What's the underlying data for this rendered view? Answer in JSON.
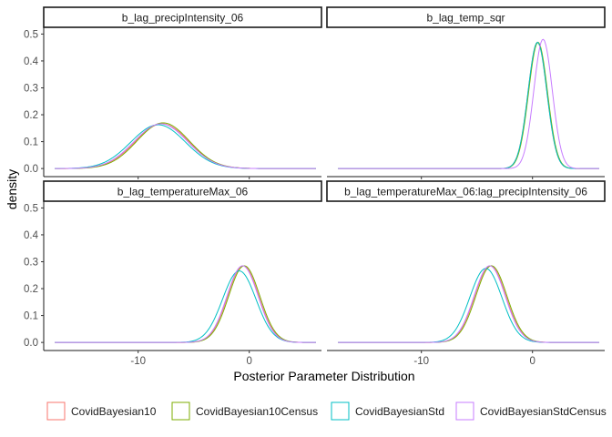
{
  "chart_data": {
    "type": "line",
    "subtype": "density",
    "xlabel": "Posterior Parameter Distribution",
    "ylabel": "density",
    "xlim": [
      -18.5,
      6.5
    ],
    "ylim": [
      -0.03,
      0.525
    ],
    "x_ticks": [
      -10,
      0
    ],
    "x_tick_labels": [
      "-10",
      "0"
    ],
    "y_ticks": [
      0.0,
      0.1,
      0.2,
      0.3,
      0.4,
      0.5
    ],
    "y_tick_labels": [
      "0.0",
      "0.1",
      "0.2",
      "0.3",
      "0.4",
      "0.5"
    ],
    "legend_position": "bottom",
    "series": [
      {
        "name": "CovidBayesian10",
        "color": "#F8766D"
      },
      {
        "name": "CovidBayesian10Census",
        "color": "#7CAE00"
      },
      {
        "name": "CovidBayesianStd",
        "color": "#00BFC4"
      },
      {
        "name": "CovidBayesianStdCensus",
        "color": "#C77CFF"
      }
    ],
    "panels": [
      {
        "title": "b_lag_precipIntensity_06",
        "x_range": [
          -17.5,
          6
        ],
        "curves": [
          {
            "series": "CovidBayesian10",
            "mean": -7.85,
            "sd": 2.4
          },
          {
            "series": "CovidBayesian10Census",
            "mean": -7.75,
            "sd": 2.35
          },
          {
            "series": "CovidBayesianStd",
            "mean": -8.2,
            "sd": 2.45
          },
          {
            "series": "CovidBayesianStdCensus",
            "mean": -7.95,
            "sd": 2.4
          }
        ]
      },
      {
        "title": "b_lag_temp_sqr",
        "x_range": [
          -17.5,
          6
        ],
        "curves": [
          {
            "series": "CovidBayesian10",
            "mean": 0.45,
            "sd": 0.85
          },
          {
            "series": "CovidBayesian10Census",
            "mean": 0.5,
            "sd": 0.85
          },
          {
            "series": "CovidBayesianStd",
            "mean": 0.45,
            "sd": 0.85
          },
          {
            "series": "CovidBayesianStdCensus",
            "mean": 0.95,
            "sd": 0.83
          }
        ]
      },
      {
        "title": "b_lag_temperatureMax_06",
        "x_range": [
          -17.5,
          6
        ],
        "curves": [
          {
            "series": "CovidBayesian10",
            "mean": -0.55,
            "sd": 1.4
          },
          {
            "series": "CovidBayesian10Census",
            "mean": -0.45,
            "sd": 1.4
          },
          {
            "series": "CovidBayesianStd",
            "mean": -0.9,
            "sd": 1.5
          },
          {
            "series": "CovidBayesianStdCensus",
            "mean": -0.6,
            "sd": 1.4
          }
        ]
      },
      {
        "title": "b_lag_temperatureMax_06:lag_precipIntensity_06",
        "x_range": [
          -17.5,
          6
        ],
        "curves": [
          {
            "series": "CovidBayesian10",
            "mean": -3.8,
            "sd": 1.4
          },
          {
            "series": "CovidBayesian10Census",
            "mean": -3.7,
            "sd": 1.4
          },
          {
            "series": "CovidBayesianStd",
            "mean": -4.2,
            "sd": 1.45
          },
          {
            "series": "CovidBayesianStdCensus",
            "mean": -3.85,
            "sd": 1.4
          }
        ]
      }
    ]
  }
}
